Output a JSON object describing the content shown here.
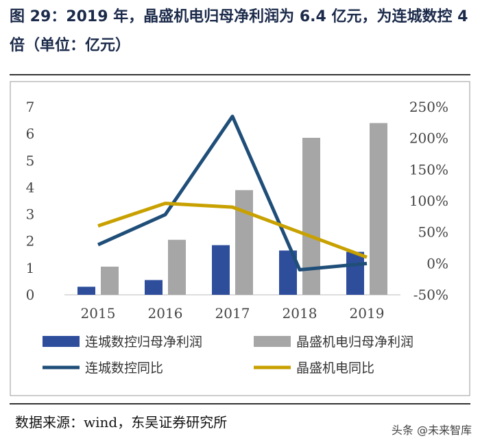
{
  "title": "图 29：2019 年，晶盛机电归母净利润为 6.4 亿元，为连城数控 4 倍（单位：亿元）",
  "source": "数据来源：wind，东吴证券研究所",
  "watermark": "头条 @未来智库",
  "colors": {
    "lianc_bar": "#2e4e9c",
    "jingsheng_bar": "#a6a6a6",
    "lianc_line": "#1f4e79",
    "jingsheng_line": "#c8a100"
  },
  "chart_data": {
    "type": "bar",
    "categories": [
      "2015",
      "2016",
      "2017",
      "2018",
      "2019"
    ],
    "series": [
      {
        "name": "连城数控归母净利润",
        "kind": "bar",
        "axis": "left",
        "values": [
          0.3,
          0.55,
          1.85,
          1.65,
          1.6
        ]
      },
      {
        "name": "晶盛机电归母净利润",
        "kind": "bar",
        "axis": "left",
        "values": [
          1.05,
          2.05,
          3.9,
          5.85,
          6.4
        ]
      },
      {
        "name": "连城数控同比",
        "kind": "line",
        "axis": "right",
        "values": [
          30,
          78,
          235,
          -10,
          0
        ]
      },
      {
        "name": "晶盛机电同比",
        "kind": "line",
        "axis": "right",
        "values": [
          60,
          96,
          90,
          50,
          10
        ]
      }
    ],
    "ylim": [
      0,
      7
    ],
    "y_ticks": [
      "0",
      "1",
      "2",
      "3",
      "4",
      "5",
      "6",
      "7"
    ],
    "y2lim": [
      -50,
      250
    ],
    "y2_ticks": [
      "-50%",
      "0%",
      "50%",
      "100%",
      "150%",
      "200%",
      "250%"
    ],
    "grid": false,
    "legend_position": "bottom"
  }
}
